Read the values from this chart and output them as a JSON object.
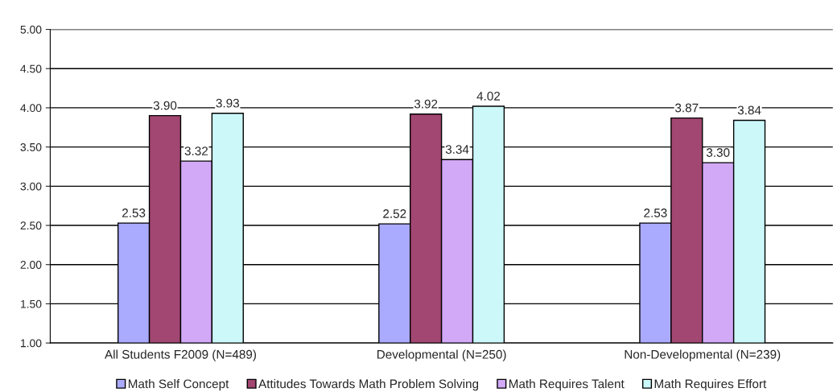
{
  "chart_data": {
    "type": "bar",
    "categories": [
      "All Students F2009 (N=489)",
      "Developmental (N=250)",
      "Non-Developmental (N=239)"
    ],
    "series": [
      {
        "name": "Math Self Concept",
        "color": "#aaaaff",
        "values": [
          2.53,
          2.52,
          2.53
        ],
        "value_labels": [
          "2.53",
          "2.52",
          "2.53"
        ]
      },
      {
        "name": "Attitudes Towards Math Problem Solving",
        "color": "#a24672",
        "values": [
          3.9,
          3.92,
          3.87
        ],
        "value_labels": [
          "3.90",
          "3.92",
          "3.87"
        ]
      },
      {
        "name": "Math Requires Talent",
        "color": "#d1a9f7",
        "values": [
          3.32,
          3.34,
          3.3
        ],
        "value_labels": [
          "3.32",
          "3.34",
          "3.30"
        ]
      },
      {
        "name": "Math Requires Effort",
        "color": "#ccf8fa",
        "values": [
          3.93,
          4.02,
          3.84
        ],
        "value_labels": [
          "3.93",
          "4.02",
          "3.84"
        ]
      }
    ],
    "ylim": [
      1,
      5
    ],
    "yticks": [
      {
        "value": 1,
        "label": "1.00"
      },
      {
        "value": 1.5,
        "label": "1.50"
      },
      {
        "value": 2,
        "label": "2.00"
      },
      {
        "value": 2.5,
        "label": "2.50"
      },
      {
        "value": 3,
        "label": "3.00"
      },
      {
        "value": 3.5,
        "label": "3.50"
      },
      {
        "value": 4,
        "label": "4.00"
      },
      {
        "value": 4.5,
        "label": "4.50"
      },
      {
        "value": 5,
        "label": "5.00"
      }
    ],
    "grid": "y",
    "legend": "bottom"
  }
}
